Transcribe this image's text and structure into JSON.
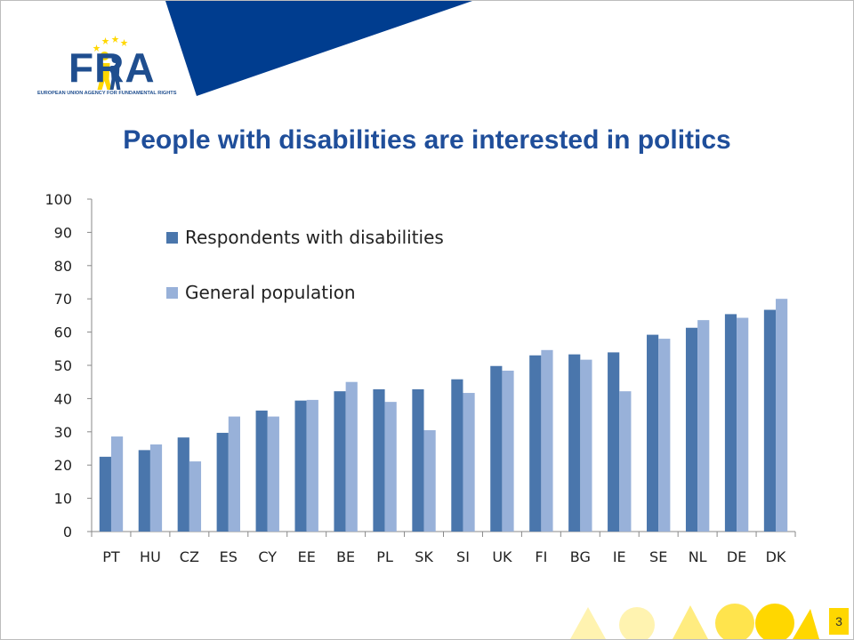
{
  "branding": {
    "logo_text": "FRA",
    "logo_subtitle": "EUROPEAN UNION AGENCY FOR FUNDAMENTAL RIGHTS",
    "colors": {
      "navy": "#003d8f",
      "brand_blue": "#1f4e8f",
      "yellow": "#ffd700"
    }
  },
  "slide": {
    "title": "People with disabilities are interested in politics",
    "page_number": "3"
  },
  "chart_data": {
    "type": "bar",
    "categories": [
      "PT",
      "HU",
      "CZ",
      "ES",
      "CY",
      "EE",
      "BE",
      "PL",
      "SK",
      "SI",
      "UK",
      "FI",
      "BG",
      "IE",
      "SE",
      "NL",
      "DE",
      "DK"
    ],
    "series": [
      {
        "name": "Respondents with disabilities",
        "color": "#4a76ac",
        "values": [
          22.5,
          24.5,
          28.3,
          29.7,
          36.4,
          39.4,
          42.2,
          42.8,
          42.8,
          45.8,
          49.8,
          53.0,
          53.3,
          53.9,
          59.2,
          61.3,
          65.4,
          66.7
        ]
      },
      {
        "name": "General population",
        "color": "#98b1d9",
        "values": [
          28.6,
          26.2,
          21.1,
          34.6,
          34.6,
          39.6,
          45.0,
          39.0,
          30.5,
          41.7,
          48.4,
          54.6,
          51.7,
          42.2,
          58.0,
          63.6,
          64.3,
          70.0
        ]
      }
    ],
    "ylim": [
      0,
      100
    ],
    "yticks": [
      0,
      10,
      20,
      30,
      40,
      50,
      60,
      70,
      80,
      90,
      100
    ],
    "grid": false,
    "legend_position": "top-left",
    "title": "",
    "xlabel": "",
    "ylabel": ""
  }
}
